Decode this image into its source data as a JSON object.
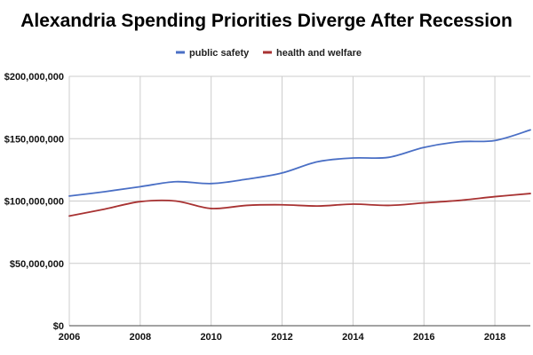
{
  "chart_data": {
    "type": "line",
    "title": "Alexandria Spending Priorities Diverge After Recession",
    "xlabel": "",
    "ylabel": "",
    "x": [
      2006,
      2007,
      2008,
      2009,
      2010,
      2011,
      2012,
      2013,
      2014,
      2015,
      2016,
      2017,
      2018,
      2019
    ],
    "xlim": [
      2006,
      2019
    ],
    "ylim": [
      0,
      200000000
    ],
    "x_ticks": [
      {
        "value": 2006,
        "label": "2006"
      },
      {
        "value": 2008,
        "label": "2008"
      },
      {
        "value": 2010,
        "label": "2010"
      },
      {
        "value": 2012,
        "label": "2012"
      },
      {
        "value": 2014,
        "label": "2014"
      },
      {
        "value": 2016,
        "label": "2016"
      },
      {
        "value": 2018,
        "label": "2018"
      }
    ],
    "y_ticks": [
      {
        "value": 0,
        "label": "$0"
      },
      {
        "value": 50000000,
        "label": "$50,000,000"
      },
      {
        "value": 100000000,
        "label": "$100,000,000"
      },
      {
        "value": 150000000,
        "label": "$150,000,000"
      },
      {
        "value": 200000000,
        "label": "$200,000,000"
      }
    ],
    "grid": true,
    "legend_position": "top-center",
    "series": [
      {
        "name": "public safety",
        "color": "#4a6fc5",
        "values": [
          104000000,
          107500000,
          111500000,
          115500000,
          114000000,
          117500000,
          122500000,
          131500000,
          134500000,
          135000000,
          143000000,
          147500000,
          148500000,
          157000000
        ]
      },
      {
        "name": "health and welfare",
        "color": "#a83232",
        "values": [
          88000000,
          93500000,
          99500000,
          100000000,
          94000000,
          96500000,
          97000000,
          96000000,
          97500000,
          96500000,
          98500000,
          100500000,
          103500000,
          106000000
        ]
      }
    ]
  }
}
